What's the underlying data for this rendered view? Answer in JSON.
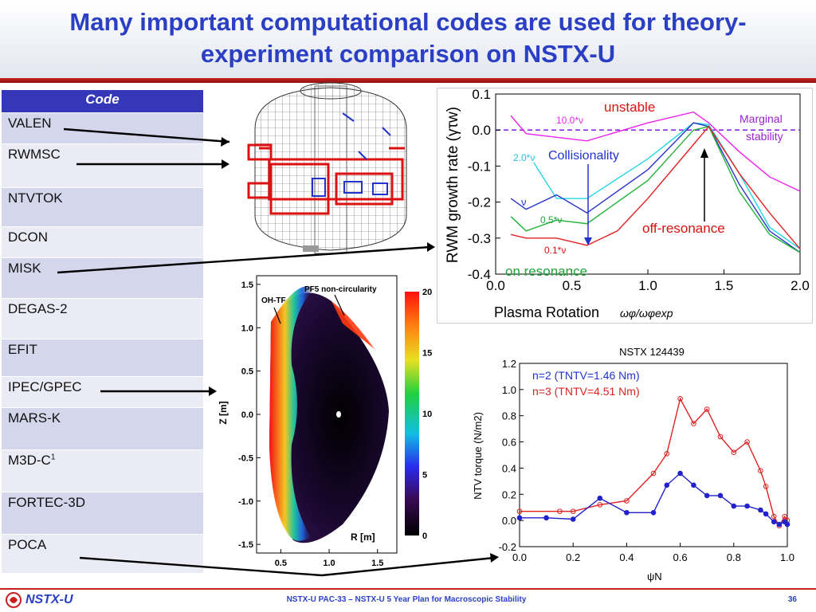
{
  "slide": {
    "title_line1": "Many important computational codes are used for theory-",
    "title_line2": "experiment comparison on NSTX-U"
  },
  "codes_table": {
    "header": "Code",
    "rows": [
      "VALEN",
      "RWMSC",
      "NTVTOK",
      "DCON",
      "MISK",
      "DEGAS-2",
      "EFIT",
      "IPEC/GPEC",
      "MARS-K",
      "M3D-C",
      "FORTEC-3D",
      "POCA"
    ],
    "m3dc_superscript": "1"
  },
  "rwm_plot": {
    "ylabel": "RWM growth rate (γτw)",
    "xlabel": "Plasma Rotation",
    "xlabel_symbol": "ωφ/ωφexp",
    "y_ticks": [
      "0.1",
      "0.0",
      "-0.1",
      "-0.2",
      "-0.3",
      "-0.4"
    ],
    "x_ticks": [
      "0.0",
      "0.5",
      "1.0",
      "1.5",
      "2.0"
    ],
    "annotations": {
      "unstable": "unstable",
      "marginal_1": "Marginal",
      "marginal_2": "stability",
      "collisionality": "Collisionality",
      "off_resonance": "off-resonance",
      "on_resonance": "on resonance",
      "nu10": "10.0*ν",
      "nu2": "2.0*ν",
      "nu1": "ν",
      "nu05": "0.5*ν",
      "nu01": "0.1*ν"
    },
    "chart_data": {
      "type": "line",
      "xlim": [
        0.0,
        2.0
      ],
      "ylim": [
        -0.4,
        0.1
      ],
      "series": [
        {
          "name": "10.0*ν",
          "color": "#ee22ee",
          "x": [
            0.1,
            0.2,
            0.6,
            1.0,
            1.3,
            1.4,
            1.6,
            1.8,
            2.0
          ],
          "y": [
            0.04,
            -0.01,
            -0.03,
            0.02,
            0.05,
            0.02,
            -0.06,
            -0.13,
            -0.17
          ]
        },
        {
          "name": "2.0*ν",
          "color": "#22d6e6",
          "x": [
            0.25,
            0.4,
            0.6,
            1.0,
            1.3,
            1.4,
            1.6,
            1.8,
            2.0
          ],
          "y": [
            -0.09,
            -0.19,
            -0.19,
            -0.08,
            0.02,
            0.015,
            -0.12,
            -0.27,
            -0.33
          ]
        },
        {
          "name": "ν",
          "color": "#2a36c8",
          "x": [
            0.1,
            0.2,
            0.4,
            0.6,
            1.0,
            1.3,
            1.4,
            1.6,
            1.8,
            2.0
          ],
          "y": [
            -0.19,
            -0.22,
            -0.18,
            -0.23,
            -0.11,
            0.02,
            0.01,
            -0.15,
            -0.28,
            -0.34
          ]
        },
        {
          "name": "0.5*ν",
          "color": "#22b33a",
          "x": [
            0.1,
            0.2,
            0.4,
            0.6,
            1.0,
            1.3,
            1.4,
            1.6,
            1.8,
            2.0
          ],
          "y": [
            -0.24,
            -0.28,
            -0.25,
            -0.26,
            -0.14,
            0.0,
            0.01,
            -0.17,
            -0.29,
            -0.34
          ]
        },
        {
          "name": "0.1*ν",
          "color": "#e22222",
          "x": [
            0.1,
            0.2,
            0.4,
            0.6,
            0.8,
            1.0,
            1.2,
            1.4,
            1.6,
            1.8,
            2.0
          ],
          "y": [
            -0.29,
            -0.3,
            -0.3,
            -0.32,
            -0.28,
            -0.19,
            -0.09,
            0.01,
            -0.12,
            -0.23,
            -0.33
          ]
        }
      ]
    }
  },
  "ntv_plot": {
    "title": "NSTX 124439",
    "ylabel": "NTV torque (N/m2)",
    "xlabel": "ψN",
    "legend_n2": "n=2 (TNTV=1.46 Nm)",
    "legend_n3": "n=3 (TNTV=4.51 Nm)",
    "y_ticks": [
      "1.2",
      "1.0",
      "0.8",
      "0.6",
      "0.4",
      "0.2",
      "0.0",
      "-0.2"
    ],
    "x_ticks": [
      "0.0",
      "0.2",
      "0.4",
      "0.6",
      "0.8",
      "1.0"
    ],
    "chart_data": {
      "type": "line",
      "xlim": [
        0.0,
        1.0
      ],
      "ylim": [
        -0.2,
        1.2
      ],
      "series": [
        {
          "name": "n=3",
          "color": "#dd2222",
          "x": [
            0.0,
            0.15,
            0.2,
            0.3,
            0.4,
            0.5,
            0.55,
            0.6,
            0.65,
            0.7,
            0.75,
            0.8,
            0.85,
            0.9,
            0.92,
            0.95,
            0.97,
            0.99,
            1.0
          ],
          "y": [
            0.07,
            0.07,
            0.07,
            0.12,
            0.15,
            0.36,
            0.51,
            0.93,
            0.74,
            0.85,
            0.64,
            0.52,
            0.6,
            0.38,
            0.26,
            0.03,
            -0.04,
            0.03,
            0.0
          ]
        },
        {
          "name": "n=2",
          "color": "#2222cc",
          "x": [
            0.0,
            0.1,
            0.2,
            0.3,
            0.4,
            0.5,
            0.55,
            0.6,
            0.65,
            0.7,
            0.75,
            0.8,
            0.85,
            0.9,
            0.92,
            0.95,
            0.97,
            0.99,
            1.0
          ],
          "y": [
            0.02,
            0.02,
            0.01,
            0.17,
            0.06,
            0.06,
            0.27,
            0.36,
            0.27,
            0.19,
            0.19,
            0.11,
            0.11,
            0.08,
            0.05,
            -0.01,
            -0.03,
            -0.01,
            -0.03
          ]
        }
      ]
    }
  },
  "contour_plot": {
    "ylabel": "Z [m]",
    "xlabel": "R [m]",
    "label_ohtf": "OH-TF",
    "label_pf5": "PF5 non-circularity",
    "y_ticks": [
      "1.5",
      "1.0",
      "0.5",
      "0.0",
      "-0.5",
      "-1.0",
      "-1.5"
    ],
    "x_ticks": [
      "0.5",
      "1.0",
      "1.5"
    ],
    "colorbar_ticks": [
      "20",
      "15",
      "10",
      "5",
      "0"
    ]
  },
  "footer": {
    "logo": "NSTX-U",
    "center": "NSTX-U PAC-33 – NSTX-U 5 Year Plan for Macroscopic Stability",
    "page": "36"
  },
  "colors": {
    "title": "#2b3fc4",
    "rule": "#c9201f",
    "table_header": "#3437b8"
  }
}
